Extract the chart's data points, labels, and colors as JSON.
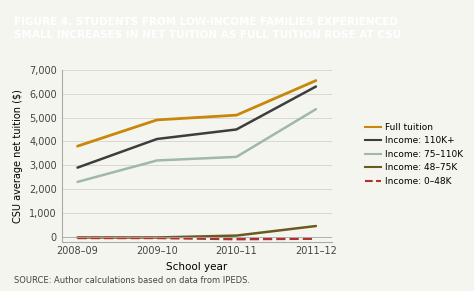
{
  "title": "FIGURE 4. STUDENTS FROM LOW-INCOME FAMILIES EXPERIENCED\nSMALL INCREASES IN NET TUITION AS FULL TUITION ROSE AT CSU",
  "xlabel": "School year",
  "ylabel": "CSU average net tuition ($)",
  "source": "SOURCE: Author calculations based on data from IPEDS.",
  "x_labels": [
    "2008–09",
    "2009–10",
    "2010–11",
    "2011–12"
  ],
  "x_values": [
    0,
    1,
    2,
    3
  ],
  "series": [
    {
      "label": "Full tuition",
      "color": "#c8870a",
      "linestyle": "solid",
      "linewidth": 2.0,
      "values": [
        3800,
        4900,
        5100,
        6550
      ]
    },
    {
      "label": "Income: 110K+",
      "color": "#3d3d3d",
      "linestyle": "solid",
      "linewidth": 1.8,
      "values": [
        2900,
        4100,
        4500,
        6300
      ]
    },
    {
      "label": "Income: 75–110K",
      "color": "#a0b8a8",
      "linestyle": "solid",
      "linewidth": 1.8,
      "values": [
        2300,
        3200,
        3350,
        5350
      ]
    },
    {
      "label": "Income: 48–75K",
      "color": "#6b5a1e",
      "linestyle": "solid",
      "linewidth": 1.8,
      "values": [
        -30,
        -30,
        50,
        450
      ]
    },
    {
      "label": "Income: 0–48K",
      "color": "#b03030",
      "linestyle": "dashed",
      "linewidth": 1.8,
      "values": [
        -50,
        -50,
        -100,
        -80
      ]
    }
  ],
  "ylim": [
    -200,
    7000
  ],
  "yticks": [
    0,
    1000,
    2000,
    3000,
    4000,
    5000,
    6000,
    7000
  ],
  "ytick_labels": [
    "0",
    "1,000",
    "2,000",
    "3,000",
    "4,000",
    "5,000",
    "6,000",
    "7,000"
  ],
  "title_bg_color": "#7a9e87",
  "plot_bg_color": "#f5f5f0",
  "outer_bg_color": "#f5f5f0",
  "title_text_color": "#ffffff",
  "title_fontsize": 7.5,
  "axis_fontsize": 7,
  "legend_fontsize": 6.5,
  "source_fontsize": 6
}
